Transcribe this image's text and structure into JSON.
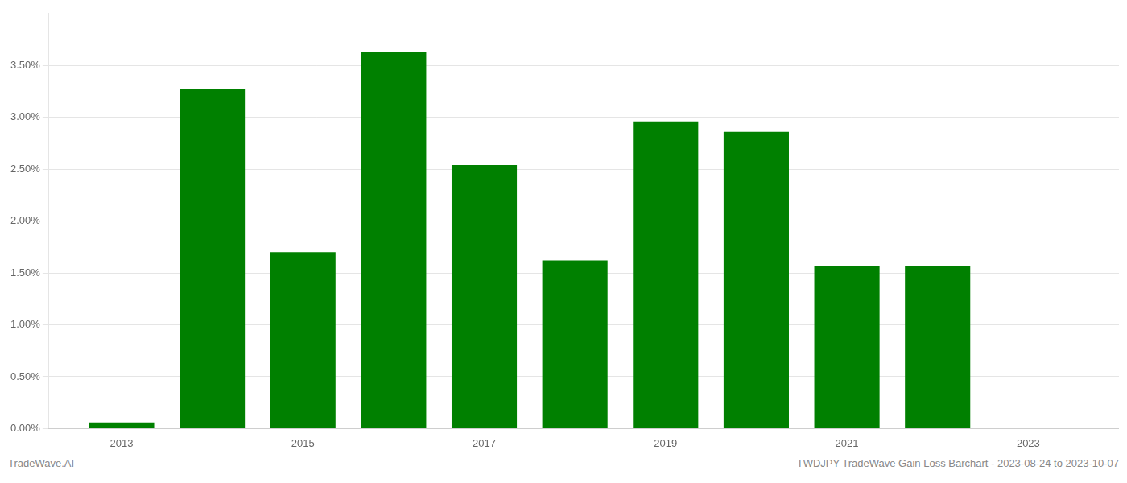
{
  "chart_data": {
    "type": "bar",
    "x": [
      2013,
      2014,
      2015,
      2016,
      2017,
      2018,
      2019,
      2020,
      2021,
      2022,
      2023
    ],
    "values": [
      0.0006,
      0.0327,
      0.017,
      0.0363,
      0.0254,
      0.0162,
      0.0296,
      0.0286,
      0.0157,
      0.0157,
      0.0
    ],
    "color": "#008000",
    "xlim": [
      2012.2,
      2024.0
    ],
    "xticks": [
      2013,
      2015,
      2017,
      2019,
      2021,
      2023
    ],
    "ylim": [
      0,
      0.04
    ],
    "yticks": [
      {
        "value": 0.0,
        "label": "0.00%"
      },
      {
        "value": 0.005,
        "label": "0.50%"
      },
      {
        "value": 0.01,
        "label": "1.00%"
      },
      {
        "value": 0.015,
        "label": "1.50%"
      },
      {
        "value": 0.02,
        "label": "2.00%"
      },
      {
        "value": 0.025,
        "label": "2.50%"
      },
      {
        "value": 0.03,
        "label": "3.00%"
      },
      {
        "value": 0.035,
        "label": "3.50%"
      }
    ],
    "grid": true,
    "annotations": [
      "TradeWave.AI",
      "TWDJPY TradeWave Gain Loss Barchart - 2023-08-24 to 2023-10-07"
    ]
  }
}
